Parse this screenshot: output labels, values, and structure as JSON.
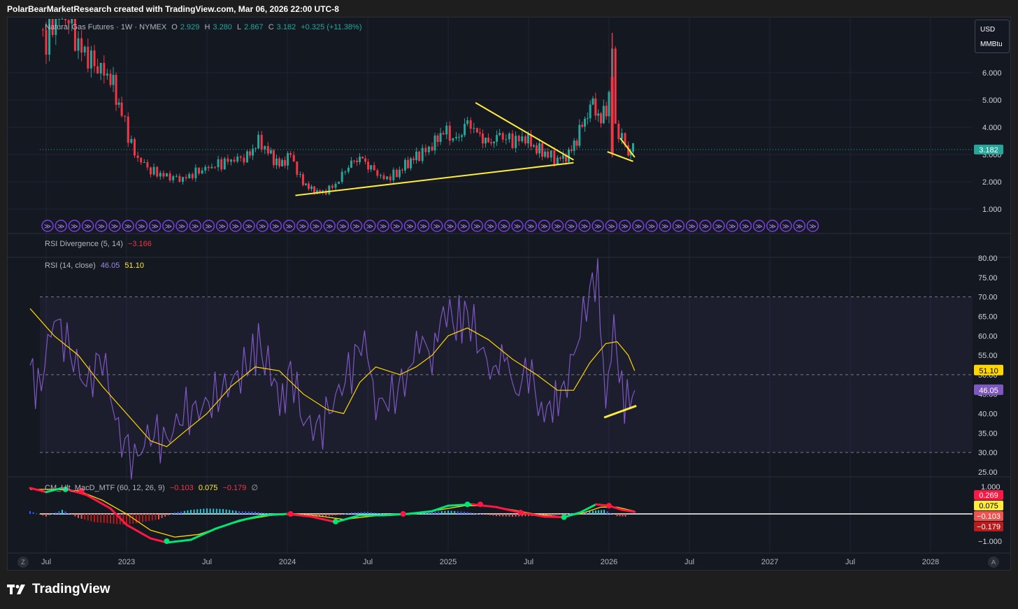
{
  "caption": "PolarBearMarketResearch created with TradingView.com, Mar 06, 2026 22:00 UTC-8",
  "brand": "TradingView",
  "unit_box": {
    "currency": "USD",
    "unit": "MMBtu"
  },
  "price_legend": {
    "symbol": "Natural Gas Futures · 1W · NYMEX",
    "o_label": "O",
    "o": "2.929",
    "h_label": "H",
    "h": "3.280",
    "l_label": "L",
    "l": "2.867",
    "c_label": "C",
    "c": "3.182",
    "change": "+0.325 (+11.38%)"
  },
  "rsi_div_legend": {
    "name": "RSI Divergence (5, 14)",
    "value": "−3.166"
  },
  "rsi_legend": {
    "name": "RSI (14, close)",
    "rsi": "46.05",
    "ma": "51.10"
  },
  "macd_legend": {
    "name": "CM_Ult_MacD_MTF (60, 12, 26, 9)",
    "v1": "−0.103",
    "v2": "0.075",
    "v3": "−0.179",
    "v4": "∅"
  },
  "corner_buttons": {
    "left": "Z",
    "right": "A"
  },
  "colors": {
    "up": "#26a69a",
    "down": "#f23645",
    "rsi": "#7e57c2",
    "rsi_ma": "#ffd600",
    "trend": "#ffeb3b",
    "last_price": "#26a69a",
    "bg": "#141821"
  },
  "chart_data": {
    "type": "candlestick",
    "x_axis": {
      "labels": [
        "Jul",
        "2023",
        "Jul",
        "2024",
        "Jul",
        "2025",
        "Jul",
        "2026",
        "Jul",
        "2027",
        "Jul",
        "2028"
      ],
      "dates": [
        2022.5,
        2023.0,
        2023.5,
        2024.0,
        2024.5,
        2025.0,
        2025.5,
        2026.0,
        2026.5,
        2027.0,
        2027.5,
        2028.0
      ]
    },
    "price": {
      "y_ticks": [
        "1.000",
        "2.000",
        "3.000",
        "4.000",
        "5.000",
        "6.000"
      ],
      "ylim": [
        0.3,
        7.1
      ],
      "last": "3.182",
      "path": [
        [
          2022.4,
          8.0
        ],
        [
          2022.5,
          7.2
        ],
        [
          2022.6,
          8.5
        ],
        [
          2022.7,
          7.0
        ],
        [
          2022.8,
          6.3
        ],
        [
          2022.9,
          5.8
        ],
        [
          2022.97,
          4.5
        ],
        [
          2023.05,
          3.0
        ],
        [
          2023.15,
          2.4
        ],
        [
          2023.25,
          2.2
        ],
        [
          2023.35,
          2.1
        ],
        [
          2023.45,
          2.4
        ],
        [
          2023.55,
          2.6
        ],
        [
          2023.65,
          2.8
        ],
        [
          2023.75,
          2.9
        ],
        [
          2023.82,
          3.5
        ],
        [
          2023.88,
          3.1
        ],
        [
          2023.95,
          2.6
        ],
        [
          2024.02,
          3.0
        ],
        [
          2024.08,
          2.1
        ],
        [
          2024.15,
          1.7
        ],
        [
          2024.22,
          1.6
        ],
        [
          2024.3,
          1.9
        ],
        [
          2024.38,
          2.6
        ],
        [
          2024.45,
          2.9
        ],
        [
          2024.52,
          2.5
        ],
        [
          2024.6,
          2.1
        ],
        [
          2024.68,
          2.3
        ],
        [
          2024.75,
          2.7
        ],
        [
          2024.82,
          3.0
        ],
        [
          2024.9,
          3.3
        ],
        [
          2024.97,
          3.9
        ],
        [
          2025.05,
          3.5
        ],
        [
          2025.12,
          4.2
        ],
        [
          2025.18,
          3.8
        ],
        [
          2025.25,
          3.4
        ],
        [
          2025.32,
          3.7
        ],
        [
          2025.4,
          3.5
        ],
        [
          2025.48,
          3.6
        ],
        [
          2025.55,
          3.2
        ],
        [
          2025.62,
          3.0
        ],
        [
          2025.68,
          2.8
        ],
        [
          2025.75,
          3.0
        ],
        [
          2025.8,
          3.6
        ],
        [
          2025.85,
          4.3
        ],
        [
          2025.9,
          4.9
        ],
        [
          2025.95,
          4.2
        ],
        [
          2026.0,
          5.1
        ],
        [
          2026.02,
          7.0
        ],
        [
          2026.04,
          4.0
        ],
        [
          2026.08,
          3.6
        ],
        [
          2026.12,
          3.1
        ],
        [
          2026.15,
          3.18
        ]
      ],
      "trendlines": [
        {
          "from": [
            2024.05,
            1.5
          ],
          "to": [
            2025.78,
            2.7
          ]
        },
        {
          "from": [
            2025.17,
            4.9
          ],
          "to": [
            2025.78,
            2.8
          ]
        },
        {
          "from": [
            2025.99,
            3.1
          ],
          "to": [
            2026.15,
            2.75
          ]
        },
        {
          "from": [
            2026.07,
            3.6
          ],
          "to": [
            2026.16,
            2.9
          ]
        }
      ]
    },
    "rsi": {
      "y_ticks": [
        "25.00",
        "30.00",
        "35.00",
        "40.00",
        "45.00",
        "50.00",
        "55.00",
        "60.00",
        "65.00",
        "70.00",
        "75.00",
        "80.00"
      ],
      "ylim": [
        25,
        80
      ],
      "overbought": 70,
      "mid": 50,
      "oversold": 30,
      "last_rsi": "46.05",
      "last_ma": "51.10",
      "rsi_series": [
        [
          2022.4,
          53
        ],
        [
          2022.45,
          45
        ],
        [
          2022.55,
          65
        ],
        [
          2022.65,
          56
        ],
        [
          2022.75,
          47
        ],
        [
          2022.85,
          55
        ],
        [
          2022.95,
          35
        ],
        [
          2023.05,
          28
        ],
        [
          2023.15,
          35
        ],
        [
          2023.25,
          33
        ],
        [
          2023.35,
          40
        ],
        [
          2023.45,
          41
        ],
        [
          2023.55,
          44
        ],
        [
          2023.65,
          48
        ],
        [
          2023.75,
          52
        ],
        [
          2023.82,
          58
        ],
        [
          2023.9,
          50
        ],
        [
          2023.97,
          42
        ],
        [
          2024.02,
          52
        ],
        [
          2024.1,
          38
        ],
        [
          2024.2,
          36
        ],
        [
          2024.3,
          44
        ],
        [
          2024.4,
          52
        ],
        [
          2024.48,
          60
        ],
        [
          2024.55,
          42
        ],
        [
          2024.65,
          44
        ],
        [
          2024.75,
          50
        ],
        [
          2024.82,
          60
        ],
        [
          2024.9,
          54
        ],
        [
          2024.97,
          67
        ],
        [
          2025.05,
          63
        ],
        [
          2025.12,
          66
        ],
        [
          2025.2,
          57
        ],
        [
          2025.28,
          50
        ],
        [
          2025.35,
          56
        ],
        [
          2025.42,
          45
        ],
        [
          2025.5,
          52
        ],
        [
          2025.58,
          40
        ],
        [
          2025.65,
          42
        ],
        [
          2025.72,
          46
        ],
        [
          2025.8,
          58
        ],
        [
          2025.88,
          72
        ],
        [
          2025.93,
          75
        ],
        [
          2025.98,
          42
        ],
        [
          2026.03,
          63
        ],
        [
          2026.08,
          45
        ],
        [
          2026.13,
          43
        ],
        [
          2026.16,
          46
        ]
      ],
      "ma_series": [
        [
          2022.4,
          67
        ],
        [
          2022.55,
          60
        ],
        [
          2022.7,
          55
        ],
        [
          2022.85,
          47
        ],
        [
          2023.0,
          40
        ],
        [
          2023.15,
          33
        ],
        [
          2023.25,
          31.5
        ],
        [
          2023.35,
          35
        ],
        [
          2023.5,
          40
        ],
        [
          2023.65,
          47
        ],
        [
          2023.8,
          52
        ],
        [
          2023.95,
          51
        ],
        [
          2024.1,
          45
        ],
        [
          2024.25,
          41
        ],
        [
          2024.35,
          40
        ],
        [
          2024.45,
          48
        ],
        [
          2024.55,
          52
        ],
        [
          2024.7,
          50
        ],
        [
          2024.8,
          52
        ],
        [
          2024.9,
          55
        ],
        [
          2025.0,
          60
        ],
        [
          2025.12,
          62
        ],
        [
          2025.25,
          59
        ],
        [
          2025.4,
          54
        ],
        [
          2025.55,
          50
        ],
        [
          2025.68,
          46
        ],
        [
          2025.78,
          46
        ],
        [
          2025.88,
          53
        ],
        [
          2025.98,
          58
        ],
        [
          2026.05,
          58.5
        ],
        [
          2026.12,
          55
        ],
        [
          2026.16,
          51
        ]
      ],
      "trendline": {
        "from": [
          2025.97,
          39
        ],
        "to": [
          2026.17,
          42
        ]
      }
    },
    "macd": {
      "y_ticks": [
        "1.000",
        "−1.000"
      ],
      "ylim": [
        -1.15,
        1.15
      ],
      "labels": [
        "0.269",
        "0.075",
        "−0.103",
        "−0.179"
      ],
      "macd_series": [
        [
          2022.4,
          0.95
        ],
        [
          2022.5,
          0.8
        ],
        [
          2022.6,
          0.95
        ],
        [
          2022.75,
          0.7
        ],
        [
          2022.9,
          0.2
        ],
        [
          2023.0,
          -0.4
        ],
        [
          2023.15,
          -0.9
        ],
        [
          2023.25,
          -1.05
        ],
        [
          2023.4,
          -0.95
        ],
        [
          2023.55,
          -0.55
        ],
        [
          2023.7,
          -0.25
        ],
        [
          2023.85,
          -0.05
        ],
        [
          2024.0,
          0.0
        ],
        [
          2024.15,
          -0.1
        ],
        [
          2024.3,
          -0.3
        ],
        [
          2024.45,
          -0.05
        ],
        [
          2024.6,
          -0.05
        ],
        [
          2024.75,
          0.0
        ],
        [
          2024.9,
          0.1
        ],
        [
          2025.0,
          0.3
        ],
        [
          2025.15,
          0.35
        ],
        [
          2025.3,
          0.25
        ],
        [
          2025.45,
          0.05
        ],
        [
          2025.6,
          -0.1
        ],
        [
          2025.72,
          -0.12
        ],
        [
          2025.82,
          0.05
        ],
        [
          2025.92,
          0.35
        ],
        [
          2026.0,
          0.3
        ],
        [
          2026.08,
          0.15
        ],
        [
          2026.16,
          0.075
        ]
      ],
      "signal_series": [
        [
          2022.4,
          0.9
        ],
        [
          2022.55,
          0.9
        ],
        [
          2022.7,
          0.85
        ],
        [
          2022.85,
          0.5
        ],
        [
          2023.0,
          0.0
        ],
        [
          2023.15,
          -0.6
        ],
        [
          2023.3,
          -0.85
        ],
        [
          2023.45,
          -0.75
        ],
        [
          2023.6,
          -0.45
        ],
        [
          2023.75,
          -0.2
        ],
        [
          2023.9,
          -0.05
        ],
        [
          2024.05,
          0.0
        ],
        [
          2024.2,
          -0.08
        ],
        [
          2024.35,
          -0.2
        ],
        [
          2024.5,
          -0.1
        ],
        [
          2024.65,
          -0.02
        ],
        [
          2024.8,
          0.02
        ],
        [
          2024.95,
          0.15
        ],
        [
          2025.1,
          0.3
        ],
        [
          2025.25,
          0.3
        ],
        [
          2025.4,
          0.15
        ],
        [
          2025.55,
          -0.02
        ],
        [
          2025.7,
          -0.1
        ],
        [
          2025.82,
          0.0
        ],
        [
          2025.95,
          0.25
        ],
        [
          2026.05,
          0.25
        ],
        [
          2026.16,
          0.1
        ]
      ],
      "histogram": [
        [
          2022.4,
          0.1
        ],
        [
          2022.5,
          -0.1
        ],
        [
          2022.6,
          0.15
        ],
        [
          2022.7,
          -0.15
        ],
        [
          2022.8,
          -0.3
        ],
        [
          2022.9,
          -0.35
        ],
        [
          2023.0,
          -0.4
        ],
        [
          2023.1,
          -0.3
        ],
        [
          2023.2,
          -0.2
        ],
        [
          2023.3,
          0.05
        ],
        [
          2023.4,
          0.15
        ],
        [
          2023.5,
          0.2
        ],
        [
          2023.6,
          0.18
        ],
        [
          2023.7,
          0.1
        ],
        [
          2023.8,
          0.08
        ],
        [
          2023.9,
          0.0
        ],
        [
          2024.0,
          -0.05
        ],
        [
          2024.1,
          -0.08
        ],
        [
          2024.2,
          -0.1
        ],
        [
          2024.3,
          -0.05
        ],
        [
          2024.4,
          0.05
        ],
        [
          2024.5,
          0.08
        ],
        [
          2024.6,
          0.0
        ],
        [
          2024.7,
          -0.03
        ],
        [
          2024.8,
          0.02
        ],
        [
          2024.9,
          0.08
        ],
        [
          2025.0,
          0.12
        ],
        [
          2025.1,
          0.08
        ],
        [
          2025.2,
          0.0
        ],
        [
          2025.3,
          -0.08
        ],
        [
          2025.4,
          -0.1
        ],
        [
          2025.5,
          -0.08
        ],
        [
          2025.6,
          -0.06
        ],
        [
          2025.7,
          -0.03
        ],
        [
          2025.8,
          0.05
        ],
        [
          2025.9,
          0.12
        ],
        [
          2025.97,
          0.15
        ],
        [
          2026.05,
          -0.08
        ],
        [
          2026.12,
          -0.1
        ]
      ]
    }
  }
}
